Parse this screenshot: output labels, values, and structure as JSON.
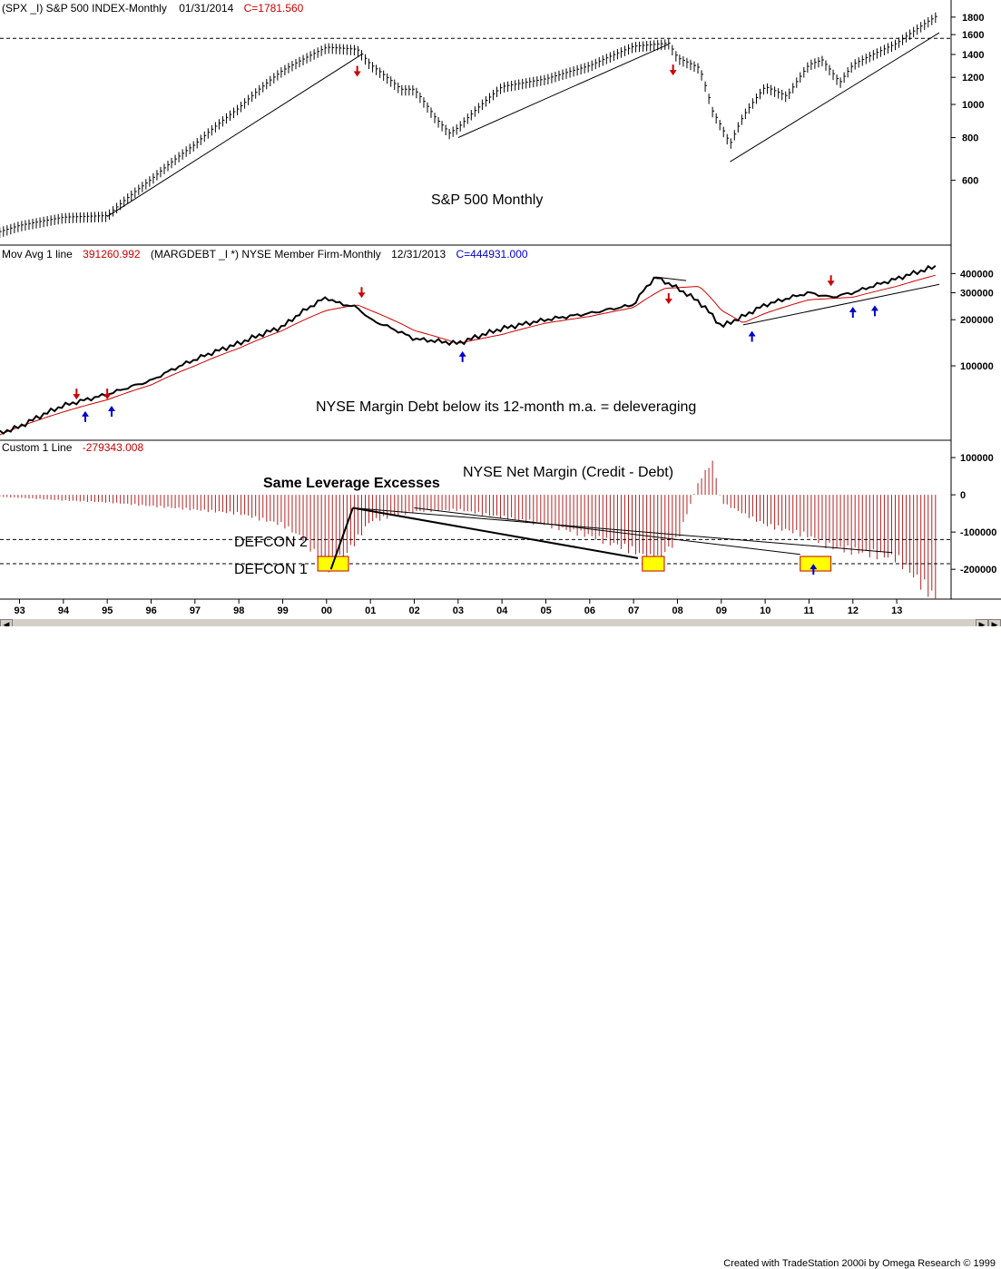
{
  "colors": {
    "red": "#cc0000",
    "blue": "#0000cc",
    "ma": "#cc0000",
    "hist": "#b22222",
    "highlight": "#ffff00"
  },
  "panel1": {
    "hdr_symbol": "(SPX _I) S&P 500 INDEX-Monthly",
    "hdr_date": "01/31/2014",
    "hdr_close": "C=1781.560",
    "annotation": "S&P 500 Monthly",
    "y_ticks": [
      "1800",
      "1600",
      "1400",
      "1200",
      "1000",
      "800",
      "600"
    ],
    "y_tick_values": [
      1800,
      1600,
      1400,
      1200,
      1000,
      800,
      600
    ]
  },
  "panel2": {
    "hdr_study": "Mov Avg 1 line",
    "hdr_value": "391260.992",
    "hdr_symbol": "(MARGDEBT _I    *) NYSE Member Firm-Monthly",
    "hdr_date": "12/31/2013",
    "hdr_close": "C=444931.000",
    "annotation": "NYSE Margin Debt below its 12-month m.a. = deleveraging",
    "y_ticks": [
      "400000",
      "300000",
      "200000",
      "100000"
    ],
    "y_tick_values": [
      400000,
      300000,
      200000,
      100000
    ]
  },
  "panel3": {
    "hdr_study": "Custom 1 Line",
    "hdr_value": "-279343.008",
    "title": "NYSE Net Margin (Credit - Debt)",
    "note_leverage": "Same Leverage Excesses",
    "defcon2": "DEFCON 2",
    "defcon1": "DEFCON 1",
    "y_ticks": [
      "100000",
      "0",
      "-100000",
      "-200000"
    ],
    "y_tick_values": [
      100000,
      0,
      -100000,
      -200000
    ]
  },
  "x_axis": {
    "labels": [
      "93",
      "94",
      "95",
      "96",
      "97",
      "98",
      "99",
      "00",
      "01",
      "02",
      "03",
      "04",
      "05",
      "06",
      "07",
      "08",
      "09",
      "10",
      "11",
      "12",
      "13"
    ]
  },
  "footer": {
    "credit": "Created with TradeStation 2000i by Omega Research © 1999"
  },
  "chart_data": [
    {
      "type": "line",
      "title": "S&P 500 Monthly",
      "series": [
        {
          "name": "S&P 500 INDEX-Monthly",
          "x": [
            1992.5,
            1993,
            1994,
            1995,
            1996,
            1997,
            1998,
            1999,
            2000,
            2000.7,
            2001,
            2001.7,
            2002,
            2002.5,
            2002.8,
            2003,
            2004,
            2005,
            2006,
            2007,
            2007.8,
            2008,
            2008.5,
            2008.8,
            2009.2,
            2009.5,
            2010,
            2010.5,
            2011,
            2011.3,
            2011.7,
            2012,
            2013,
            2013.9
          ],
          "values": [
            420,
            440,
            465,
            470,
            600,
            760,
            970,
            1250,
            1460,
            1440,
            1300,
            1100,
            1100,
            900,
            820,
            850,
            1120,
            1180,
            1290,
            1470,
            1500,
            1360,
            1270,
            950,
            760,
            920,
            1120,
            1050,
            1300,
            1340,
            1150,
            1300,
            1500,
            1800
          ]
        }
      ],
      "ylim": [
        400,
        1900
      ]
    },
    {
      "type": "line",
      "title": "",
      "series": [
        {
          "name": "NYSE Member Firm-Monthly",
          "x": [
            1992.5,
            1993,
            1994,
            1994.5,
            1995,
            1996,
            1997,
            1998,
            1999,
            1999.7,
            2000,
            2000.2,
            2000.7,
            2001,
            2002,
            2003,
            2004,
            2005,
            2006,
            2007,
            2007.5,
            2008,
            2008.5,
            2009,
            2009.5,
            2010,
            2011,
            2011.5,
            2012,
            2013,
            2013.9
          ],
          "values": [
            36000,
            40000,
            55000,
            60000,
            65000,
            80000,
            110000,
            140000,
            180000,
            250000,
            280000,
            260000,
            240000,
            200000,
            150000,
            140000,
            175000,
            200000,
            220000,
            250000,
            380000,
            320000,
            260000,
            180000,
            210000,
            250000,
            300000,
            280000,
            300000,
            370000,
            444931
          ]
        },
        {
          "name": "Mov Avg 1 line",
          "x": [
            1992.5,
            1994,
            1995,
            1996,
            1997,
            1998,
            1999,
            2000,
            2000.7,
            2001,
            2002,
            2003,
            2004,
            2005,
            2006,
            2007,
            2007.7,
            2008.5,
            2009,
            2009.5,
            2010,
            2011,
            2012,
            2013,
            2013.9
          ],
          "values": [
            35000,
            50000,
            60000,
            75000,
            100000,
            130000,
            170000,
            230000,
            250000,
            230000,
            170000,
            140000,
            160000,
            190000,
            210000,
            240000,
            320000,
            330000,
            230000,
            190000,
            220000,
            270000,
            280000,
            330000,
            391261
          ]
        }
      ],
      "ylim": [
        35000,
        480000
      ]
    },
    {
      "type": "bar",
      "title": "NYSE Net Margin (Credit - Debt)",
      "series": [
        {
          "name": "Custom 1 Line",
          "x": [
            1992.5,
            1993,
            1994,
            1995,
            1996,
            1997,
            1998,
            1999,
            1999.5,
            2000,
            2000.5,
            2001,
            2002,
            2003,
            2004,
            2005,
            2006,
            2007,
            2007.5,
            2008,
            2008.5,
            2008.8,
            2009,
            2009.5,
            2010,
            2011,
            2011.5,
            2012,
            2013,
            2013.9
          ],
          "values": [
            -5000,
            -8000,
            -15000,
            -20000,
            -30000,
            -40000,
            -50000,
            -80000,
            -120000,
            -200000,
            -150000,
            -70000,
            -45000,
            -40000,
            -60000,
            -80000,
            -110000,
            -150000,
            -180000,
            -120000,
            40000,
            90000,
            -20000,
            -50000,
            -80000,
            -110000,
            -140000,
            -150000,
            -170000,
            -279343
          ]
        }
      ],
      "ylim": [
        -280000,
        110000
      ]
    }
  ]
}
